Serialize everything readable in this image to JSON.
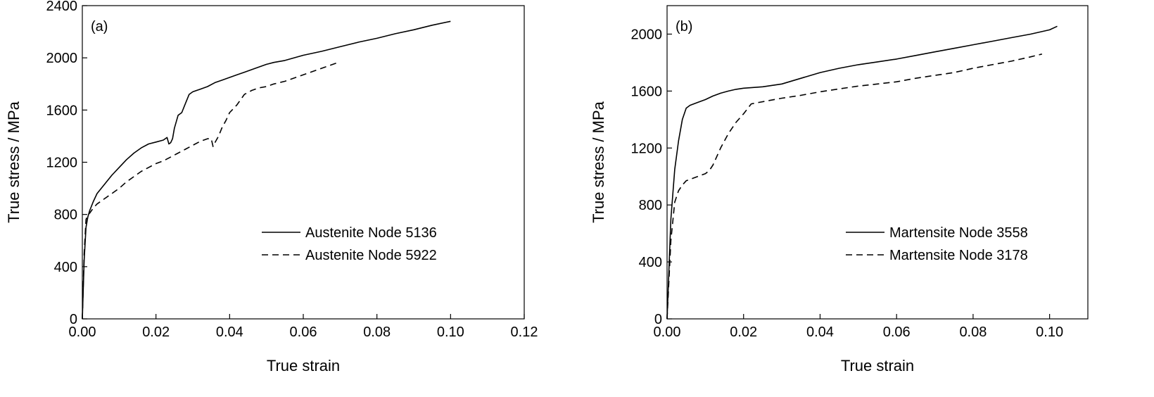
{
  "chart_data": [
    {
      "type": "line",
      "panel_label": "(a)",
      "xlabel": "True strain",
      "ylabel": "True stress / MPa",
      "xlim": [
        0,
        0.12
      ],
      "ylim": [
        0,
        2400
      ],
      "xticks": [
        0,
        0.02,
        0.04,
        0.06,
        0.08,
        0.1,
        0.12
      ],
      "xtick_labels": [
        "0.00",
        "0.02",
        "0.04",
        "0.06",
        "0.08",
        "0.10",
        "0.12"
      ],
      "yticks": [
        0,
        400,
        800,
        1200,
        1600,
        2000,
        2400
      ],
      "ytick_labels": [
        "0",
        "400",
        "800",
        "1200",
        "1600",
        "2000",
        "2400"
      ],
      "grid": false,
      "legend_position": "lower-right",
      "series": [
        {
          "name": "Austenite Node 5136",
          "style": "solid",
          "x": [
            0,
            0.0005,
            0.001,
            0.0015,
            0.002,
            0.003,
            0.004,
            0.006,
            0.008,
            0.01,
            0.012,
            0.014,
            0.016,
            0.018,
            0.02,
            0.022,
            0.023,
            0.0235,
            0.024,
            0.0245,
            0.025,
            0.026,
            0.027,
            0.028,
            0.029,
            0.03,
            0.032,
            0.034,
            0.036,
            0.038,
            0.04,
            0.042,
            0.044,
            0.046,
            0.048,
            0.05,
            0.052,
            0.055,
            0.06,
            0.065,
            0.07,
            0.075,
            0.08,
            0.085,
            0.09,
            0.095,
            0.1
          ],
          "y": [
            0,
            450,
            700,
            780,
            830,
            900,
            960,
            1030,
            1100,
            1160,
            1220,
            1270,
            1310,
            1340,
            1355,
            1370,
            1390,
            1340,
            1350,
            1380,
            1460,
            1560,
            1580,
            1650,
            1720,
            1740,
            1760,
            1780,
            1810,
            1830,
            1850,
            1870,
            1890,
            1910,
            1930,
            1950,
            1965,
            1980,
            2020,
            2050,
            2085,
            2120,
            2150,
            2185,
            2215,
            2250,
            2280
          ]
        },
        {
          "name": "Austenite Node 5922",
          "style": "dashed",
          "x": [
            0,
            0.0005,
            0.001,
            0.0015,
            0.002,
            0.003,
            0.004,
            0.006,
            0.008,
            0.01,
            0.012,
            0.014,
            0.016,
            0.018,
            0.02,
            0.022,
            0.024,
            0.026,
            0.028,
            0.03,
            0.032,
            0.034,
            0.035,
            0.0355,
            0.036,
            0.037,
            0.038,
            0.039,
            0.04,
            0.042,
            0.044,
            0.046,
            0.048,
            0.05,
            0.052,
            0.055,
            0.06,
            0.065,
            0.07
          ],
          "y": [
            0,
            500,
            760,
            800,
            810,
            850,
            880,
            920,
            960,
            1000,
            1050,
            1090,
            1130,
            1160,
            1190,
            1210,
            1240,
            1270,
            1300,
            1330,
            1360,
            1380,
            1380,
            1320,
            1350,
            1400,
            1470,
            1520,
            1580,
            1640,
            1720,
            1750,
            1770,
            1780,
            1800,
            1820,
            1870,
            1920,
            1970
          ]
        }
      ]
    },
    {
      "type": "line",
      "panel_label": "(b)",
      "xlabel": "True strain",
      "ylabel": "True stress / MPa",
      "xlim": [
        0,
        0.11
      ],
      "ylim": [
        0,
        2200
      ],
      "xticks": [
        0,
        0.02,
        0.04,
        0.06,
        0.08,
        0.1
      ],
      "xtick_labels": [
        "0.00",
        "0.02",
        "0.04",
        "0.06",
        "0.08",
        "0.10"
      ],
      "yticks": [
        0,
        400,
        800,
        1200,
        1600,
        2000
      ],
      "ytick_labels": [
        "0",
        "400",
        "800",
        "1200",
        "1600",
        "2000"
      ],
      "grid": false,
      "legend_position": "lower-right",
      "series": [
        {
          "name": "Martensite Node 3558",
          "style": "solid",
          "x": [
            0,
            0.001,
            0.002,
            0.003,
            0.004,
            0.005,
            0.006,
            0.008,
            0.01,
            0.012,
            0.014,
            0.016,
            0.018,
            0.02,
            0.025,
            0.03,
            0.035,
            0.04,
            0.045,
            0.05,
            0.055,
            0.06,
            0.065,
            0.07,
            0.075,
            0.08,
            0.085,
            0.09,
            0.095,
            0.1,
            0.102
          ],
          "y": [
            0,
            700,
            1050,
            1250,
            1400,
            1480,
            1500,
            1520,
            1540,
            1565,
            1585,
            1600,
            1612,
            1620,
            1630,
            1650,
            1690,
            1730,
            1760,
            1785,
            1805,
            1825,
            1850,
            1875,
            1900,
            1925,
            1950,
            1975,
            2000,
            2030,
            2055
          ]
        },
        {
          "name": "Martensite Node 3178",
          "style": "dashed",
          "x": [
            0,
            0.001,
            0.002,
            0.003,
            0.004,
            0.005,
            0.006,
            0.008,
            0.01,
            0.011,
            0.012,
            0.014,
            0.016,
            0.018,
            0.02,
            0.022,
            0.024,
            0.03,
            0.035,
            0.04,
            0.045,
            0.05,
            0.055,
            0.06,
            0.065,
            0.07,
            0.075,
            0.08,
            0.085,
            0.09,
            0.095,
            0.098
          ],
          "y": [
            0,
            550,
            820,
            900,
            940,
            970,
            980,
            1000,
            1020,
            1040,
            1080,
            1200,
            1300,
            1380,
            1440,
            1510,
            1520,
            1550,
            1570,
            1595,
            1615,
            1635,
            1650,
            1665,
            1690,
            1710,
            1730,
            1760,
            1785,
            1810,
            1840,
            1860
          ]
        }
      ]
    }
  ]
}
